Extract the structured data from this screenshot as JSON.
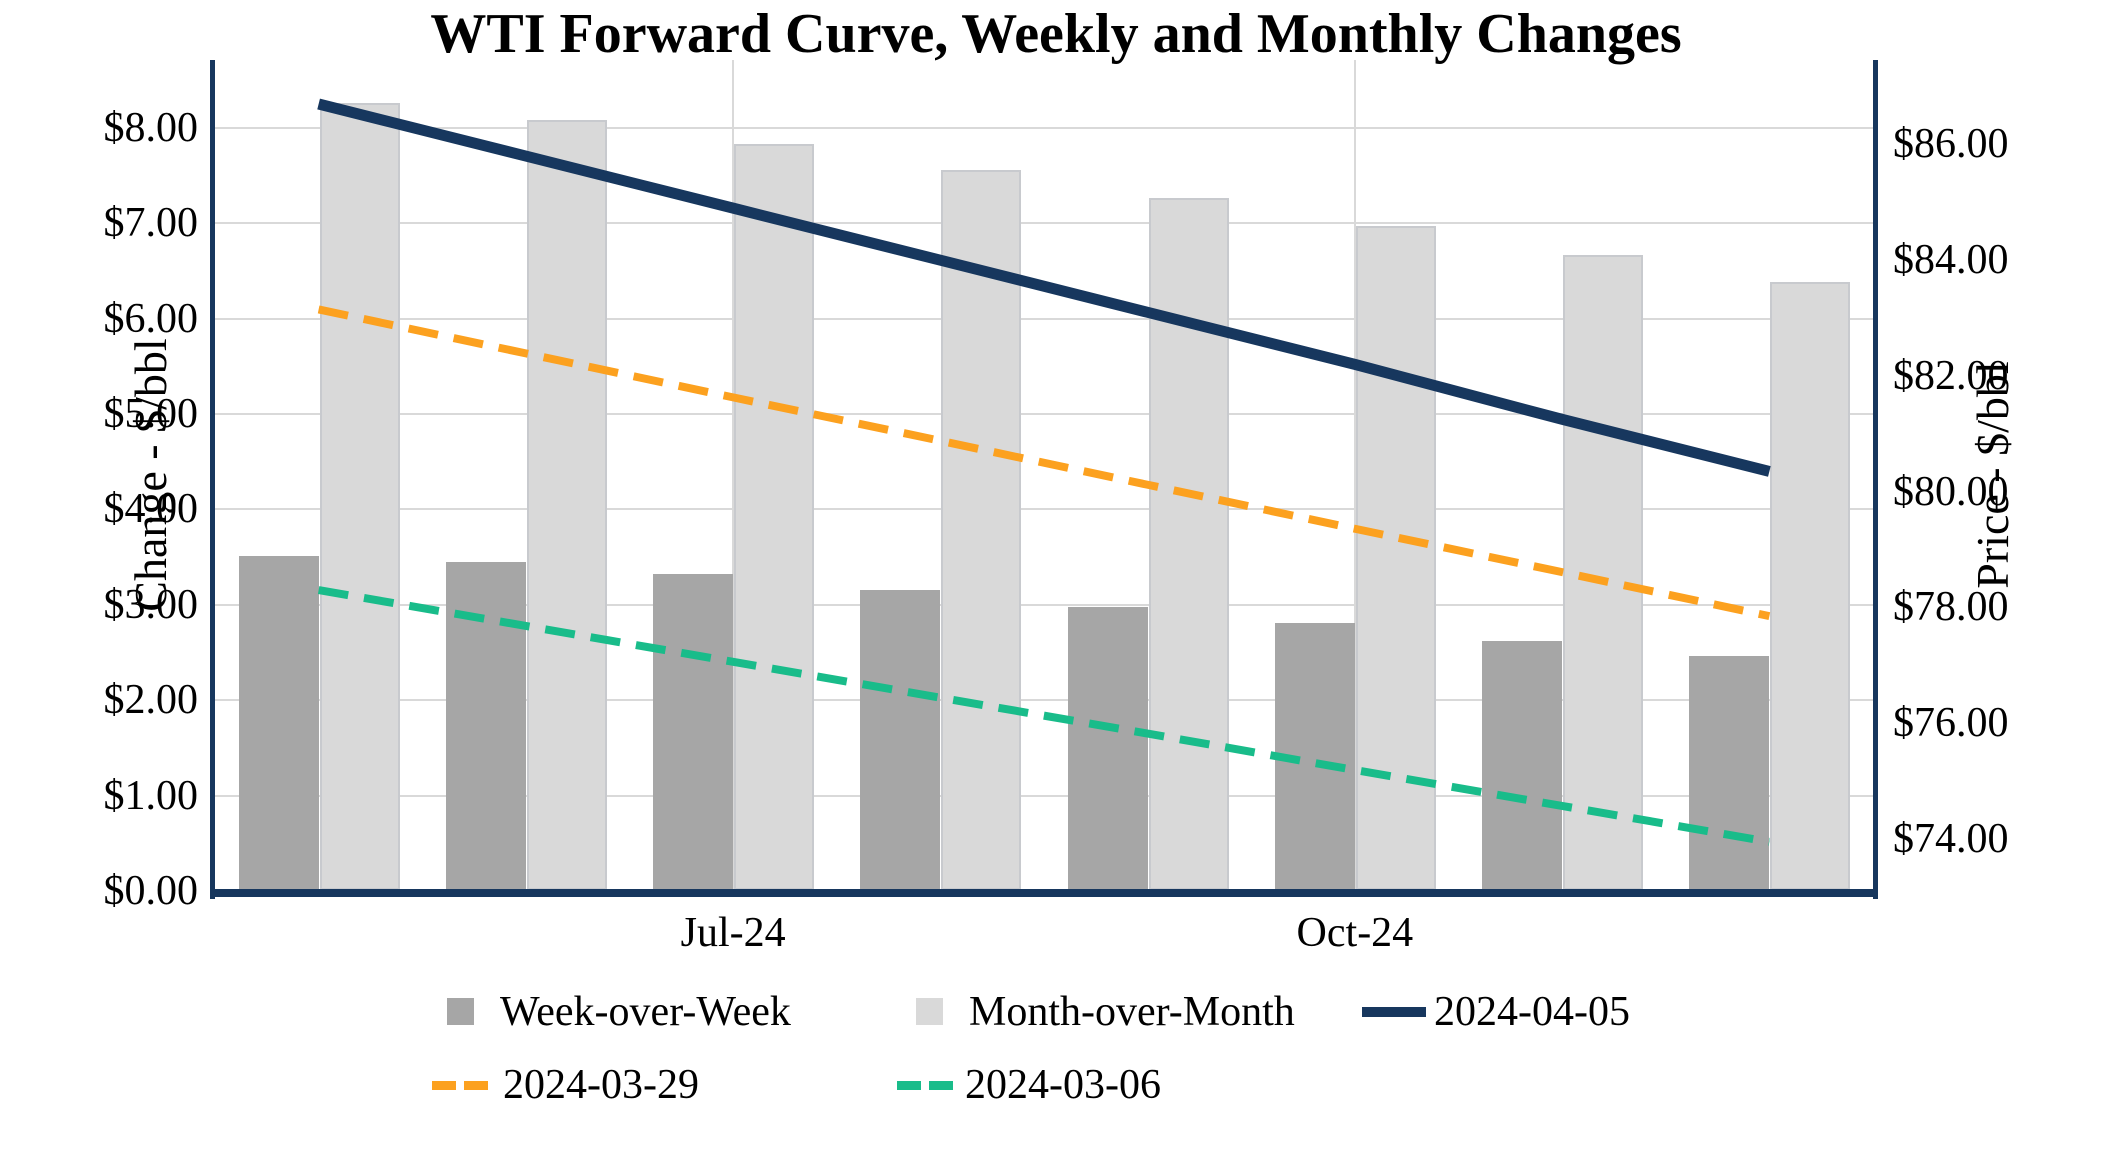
{
  "title": "WTI Forward Curve, Weekly and Monthly Changes",
  "axes": {
    "left": {
      "title": "Change - $/bbl",
      "tick_labels": [
        "$0.00",
        "$1.00",
        "$2.00",
        "$3.00",
        "$4.00",
        "$5.00",
        "$6.00",
        "$7.00",
        "$8.00"
      ],
      "tick_values": [
        0,
        1,
        2,
        3,
        4,
        5,
        6,
        7,
        8
      ],
      "range": [
        0,
        8.71
      ]
    },
    "right": {
      "title": "Price - $/bbl",
      "tick_labels": [
        "$74.00",
        "$76.00",
        "$78.00",
        "$80.00",
        "$82.00",
        "$84.00",
        "$86.00"
      ],
      "tick_values": [
        74,
        76,
        78,
        80,
        82,
        84,
        86
      ],
      "range": [
        73.1,
        87.46
      ]
    },
    "x": {
      "num_slots": 8,
      "ticks": [
        {
          "slot": 2,
          "label": "Jul-24"
        },
        {
          "slot": 5,
          "label": "Oct-24"
        }
      ]
    }
  },
  "chart_data": {
    "type": "combo-bar-line",
    "num_categories": 8,
    "x_tick_labels": [
      "Jul-24",
      "Oct-24"
    ],
    "series": [
      {
        "name": "Week-over-Week",
        "type": "bar",
        "axis": "left",
        "color": "#A6A6A6",
        "style": "solid",
        "values": [
          3.51,
          3.45,
          3.32,
          3.15,
          2.98,
          2.81,
          2.62,
          2.46
        ]
      },
      {
        "name": "Month-over-Month",
        "type": "bar",
        "axis": "left",
        "color": "#D9D9D9",
        "style": "solid",
        "values": [
          8.26,
          8.08,
          7.83,
          7.56,
          7.26,
          6.97,
          6.67,
          6.38
        ]
      },
      {
        "name": "2024-04-05",
        "type": "line",
        "axis": "right",
        "color": "#17375E",
        "style": "solid",
        "values": [
          86.7,
          85.8,
          84.9,
          84.0,
          83.1,
          82.2,
          81.25,
          80.35
        ]
      },
      {
        "name": "2024-03-29",
        "type": "line",
        "axis": "right",
        "color": "#FCA11F",
        "style": "dashed",
        "values": [
          83.15,
          82.39,
          81.63,
          80.88,
          80.12,
          79.36,
          78.61,
          77.85
        ]
      },
      {
        "name": "2024-03-06",
        "type": "line",
        "axis": "right",
        "color": "#19BC8A",
        "style": "dashed",
        "values": [
          78.3,
          77.68,
          77.06,
          76.44,
          75.82,
          75.19,
          74.57,
          73.95
        ]
      }
    ],
    "grid": {
      "horizontal": true,
      "vertical_at_x_ticks": true,
      "color": "#d9d9d9"
    },
    "frame_color": "#17375E",
    "legend_position": "bottom"
  },
  "legend": {
    "rows": [
      [
        {
          "series": "Week-over-Week",
          "marker": "square"
        },
        {
          "series": "Month-over-Month",
          "marker": "square"
        },
        {
          "series": "2024-04-05",
          "marker": "line"
        }
      ],
      [
        {
          "series": "2024-03-29",
          "marker": "dashes"
        },
        {
          "series": "2024-03-06",
          "marker": "dashes"
        }
      ]
    ]
  }
}
